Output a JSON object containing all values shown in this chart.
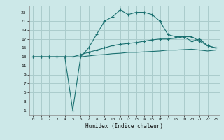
{
  "xlabel": "Humidex (Indice chaleur)",
  "bg_color": "#cce8e8",
  "grid_color": "#aacccc",
  "line_color": "#1a7070",
  "x_ticks": [
    0,
    1,
    2,
    3,
    4,
    5,
    6,
    7,
    8,
    9,
    10,
    11,
    12,
    13,
    14,
    15,
    16,
    17,
    18,
    19,
    20,
    21,
    22,
    23
  ],
  "y_ticks": [
    1,
    3,
    5,
    7,
    9,
    11,
    13,
    15,
    17,
    19,
    21,
    23
  ],
  "xlim": [
    -0.5,
    23.5
  ],
  "ylim": [
    0.0,
    24.5
  ],
  "curve1_x": [
    0,
    1,
    2,
    3,
    4,
    5,
    6,
    7,
    8,
    9,
    10,
    11,
    12,
    13,
    14,
    15,
    16,
    17,
    18,
    19,
    20,
    21,
    22,
    23
  ],
  "curve1_y": [
    13,
    13,
    13,
    13,
    13,
    1,
    13,
    15,
    18,
    21,
    22,
    23.5,
    22.5,
    23,
    23,
    22.5,
    21,
    18,
    17.5,
    17.5,
    16.5,
    17,
    15.5,
    15
  ],
  "curve2_x": [
    0,
    1,
    2,
    3,
    4,
    5,
    6,
    7,
    8,
    9,
    10,
    11,
    12,
    13,
    14,
    15,
    16,
    17,
    18,
    19,
    20,
    21,
    22,
    23
  ],
  "curve2_y": [
    13,
    13,
    13,
    13,
    13,
    13,
    13.5,
    14,
    14.5,
    15,
    15.5,
    15.8,
    16,
    16.2,
    16.5,
    16.8,
    17,
    17,
    17.2,
    17.5,
    17.5,
    16.5,
    15.5,
    15
  ],
  "curve3_x": [
    0,
    1,
    2,
    3,
    4,
    5,
    6,
    7,
    8,
    9,
    10,
    11,
    12,
    13,
    14,
    15,
    16,
    17,
    18,
    19,
    20,
    21,
    22,
    23
  ],
  "curve3_y": [
    13,
    13,
    13,
    13,
    13,
    13,
    13,
    13.2,
    13.4,
    13.5,
    13.7,
    13.8,
    14,
    14,
    14.1,
    14.2,
    14.3,
    14.5,
    14.5,
    14.6,
    14.7,
    14.5,
    14.3,
    14.5
  ]
}
